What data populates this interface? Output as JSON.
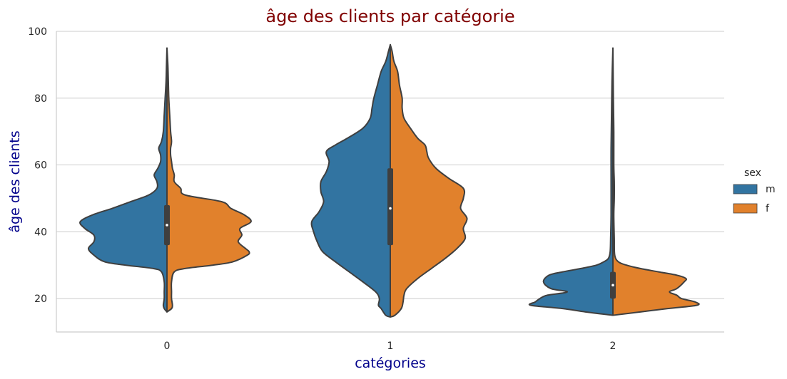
{
  "chart_data": {
    "type": "violin",
    "split": true,
    "title": "âge des clients par catégorie",
    "xlabel": "catégories",
    "ylabel": "âge des clients",
    "categories": [
      "0",
      "1",
      "2"
    ],
    "ylim": [
      10,
      100
    ],
    "yticks": [
      20,
      40,
      60,
      80,
      100
    ],
    "grid": "horizontal",
    "legend": {
      "title": "sex",
      "position": "right",
      "entries": [
        {
          "label": "m",
          "color": "#3274a1"
        },
        {
          "label": "f",
          "color": "#e1812c"
        }
      ]
    },
    "colors": {
      "title": "#800000",
      "axis_labels": "#00008b",
      "outline": "#3f3f3f",
      "grid": "#cccccc"
    },
    "series": [
      {
        "name": "m",
        "side": "left",
        "color": "#3274a1",
        "profiles": [
          [
            [
              16,
              0.0
            ],
            [
              17,
              0.03
            ],
            [
              18,
              0.04
            ],
            [
              20,
              0.03
            ],
            [
              22,
              0.03
            ],
            [
              25,
              0.03
            ],
            [
              28,
              0.06
            ],
            [
              29,
              0.15
            ],
            [
              30,
              0.45
            ],
            [
              31,
              0.68
            ],
            [
              33,
              0.8
            ],
            [
              35,
              0.86
            ],
            [
              37,
              0.8
            ],
            [
              39,
              0.8
            ],
            [
              41,
              0.9
            ],
            [
              43,
              0.95
            ],
            [
              45,
              0.82
            ],
            [
              47,
              0.6
            ],
            [
              49,
              0.4
            ],
            [
              51,
              0.2
            ],
            [
              53,
              0.11
            ],
            [
              55,
              0.11
            ],
            [
              57,
              0.14
            ],
            [
              59,
              0.1
            ],
            [
              61,
              0.07
            ],
            [
              63,
              0.07
            ],
            [
              65,
              0.09
            ],
            [
              67,
              0.06
            ],
            [
              70,
              0.04
            ],
            [
              75,
              0.03
            ],
            [
              80,
              0.02
            ],
            [
              85,
              0.01
            ],
            [
              90,
              0.005
            ],
            [
              95,
              0.0
            ]
          ],
          [
            [
              14.5,
              0.0
            ],
            [
              15,
              0.05
            ],
            [
              17,
              0.1
            ],
            [
              18,
              0.13
            ],
            [
              20,
              0.12
            ],
            [
              22,
              0.16
            ],
            [
              25,
              0.3
            ],
            [
              28,
              0.45
            ],
            [
              31,
              0.6
            ],
            [
              34,
              0.74
            ],
            [
              37,
              0.8
            ],
            [
              40,
              0.84
            ],
            [
              43,
              0.86
            ],
            [
              46,
              0.78
            ],
            [
              49,
              0.73
            ],
            [
              52,
              0.76
            ],
            [
              55,
              0.76
            ],
            [
              58,
              0.7
            ],
            [
              61,
              0.67
            ],
            [
              64,
              0.7
            ],
            [
              66,
              0.6
            ],
            [
              68,
              0.47
            ],
            [
              71,
              0.3
            ],
            [
              74,
              0.22
            ],
            [
              77,
              0.2
            ],
            [
              80,
              0.18
            ],
            [
              84,
              0.14
            ],
            [
              88,
              0.1
            ],
            [
              91,
              0.05
            ],
            [
              94,
              0.02
            ],
            [
              96,
              0.0
            ]
          ],
          [
            [
              15,
              0.0
            ],
            [
              16,
              0.3
            ],
            [
              17,
              0.55
            ],
            [
              18,
              0.9
            ],
            [
              19,
              0.85
            ],
            [
              20,
              0.8
            ],
            [
              21,
              0.72
            ],
            [
              22,
              0.5
            ],
            [
              23,
              0.68
            ],
            [
              25,
              0.76
            ],
            [
              27,
              0.7
            ],
            [
              28,
              0.55
            ],
            [
              29,
              0.35
            ],
            [
              30,
              0.18
            ],
            [
              31,
              0.1
            ],
            [
              32,
              0.05
            ],
            [
              34,
              0.03
            ],
            [
              38,
              0.025
            ],
            [
              45,
              0.02
            ],
            [
              55,
              0.02
            ],
            [
              65,
              0.02
            ],
            [
              75,
              0.015
            ],
            [
              85,
              0.01
            ],
            [
              95,
              0.0
            ]
          ]
        ]
      },
      {
        "name": "f",
        "side": "right",
        "color": "#e1812c",
        "profiles": [
          [
            [
              16,
              0.0
            ],
            [
              17,
              0.05
            ],
            [
              18,
              0.06
            ],
            [
              20,
              0.05
            ],
            [
              22,
              0.05
            ],
            [
              25,
              0.05
            ],
            [
              28,
              0.08
            ],
            [
              29,
              0.2
            ],
            [
              30,
              0.5
            ],
            [
              31,
              0.72
            ],
            [
              33,
              0.88
            ],
            [
              34,
              0.9
            ],
            [
              35,
              0.86
            ],
            [
              37,
              0.78
            ],
            [
              39,
              0.82
            ],
            [
              41,
              0.8
            ],
            [
              43,
              0.92
            ],
            [
              45,
              0.85
            ],
            [
              47,
              0.7
            ],
            [
              49,
              0.6
            ],
            [
              51,
              0.2
            ],
            [
              53,
              0.15
            ],
            [
              55,
              0.08
            ],
            [
              57,
              0.08
            ],
            [
              59,
              0.06
            ],
            [
              61,
              0.05
            ],
            [
              63,
              0.04
            ],
            [
              65,
              0.04
            ],
            [
              67,
              0.05
            ],
            [
              70,
              0.04
            ],
            [
              75,
              0.03
            ],
            [
              80,
              0.02
            ],
            [
              85,
              0.015
            ],
            [
              90,
              0.01
            ],
            [
              95,
              0.0
            ]
          ],
          [
            [
              14.5,
              0.0
            ],
            [
              15,
              0.05
            ],
            [
              17,
              0.12
            ],
            [
              19,
              0.14
            ],
            [
              21,
              0.15
            ],
            [
              23,
              0.18
            ],
            [
              26,
              0.3
            ],
            [
              29,
              0.45
            ],
            [
              32,
              0.6
            ],
            [
              35,
              0.73
            ],
            [
              38,
              0.82
            ],
            [
              41,
              0.8
            ],
            [
              44,
              0.84
            ],
            [
              47,
              0.77
            ],
            [
              50,
              0.8
            ],
            [
              53,
              0.8
            ],
            [
              56,
              0.64
            ],
            [
              59,
              0.5
            ],
            [
              62,
              0.42
            ],
            [
              64,
              0.4
            ],
            [
              66,
              0.38
            ],
            [
              68,
              0.3
            ],
            [
              71,
              0.22
            ],
            [
              74,
              0.15
            ],
            [
              77,
              0.13
            ],
            [
              80,
              0.13
            ],
            [
              84,
              0.1
            ],
            [
              88,
              0.08
            ],
            [
              91,
              0.04
            ],
            [
              94,
              0.02
            ],
            [
              96,
              0.0
            ]
          ],
          [
            [
              15,
              0.0
            ],
            [
              16,
              0.3
            ],
            [
              17,
              0.6
            ],
            [
              18,
              0.92
            ],
            [
              19,
              0.9
            ],
            [
              20,
              0.75
            ],
            [
              21,
              0.7
            ],
            [
              22,
              0.62
            ],
            [
              23,
              0.7
            ],
            [
              25,
              0.78
            ],
            [
              26,
              0.8
            ],
            [
              27,
              0.7
            ],
            [
              28,
              0.5
            ],
            [
              29,
              0.3
            ],
            [
              30,
              0.15
            ],
            [
              31,
              0.06
            ],
            [
              33,
              0.02
            ],
            [
              38,
              0.015
            ],
            [
              45,
              0.01
            ],
            [
              50,
              0.015
            ],
            [
              55,
              0.015
            ],
            [
              60,
              0.01
            ],
            [
              70,
              0.01
            ],
            [
              80,
              0.005
            ],
            [
              95,
              0.0
            ]
          ]
        ]
      }
    ],
    "boxes": [
      {
        "category": "0",
        "q1": 36,
        "median": 42,
        "q3": 48,
        "whisker_low": 16,
        "whisker_high": 95
      },
      {
        "category": "1",
        "q1": 36,
        "median": 47,
        "q3": 59,
        "whisker_low": 14.5,
        "whisker_high": 96
      },
      {
        "category": "2",
        "q1": 20,
        "median": 24,
        "q3": 28,
        "whisker_low": 15,
        "whisker_high": 95
      }
    ]
  }
}
